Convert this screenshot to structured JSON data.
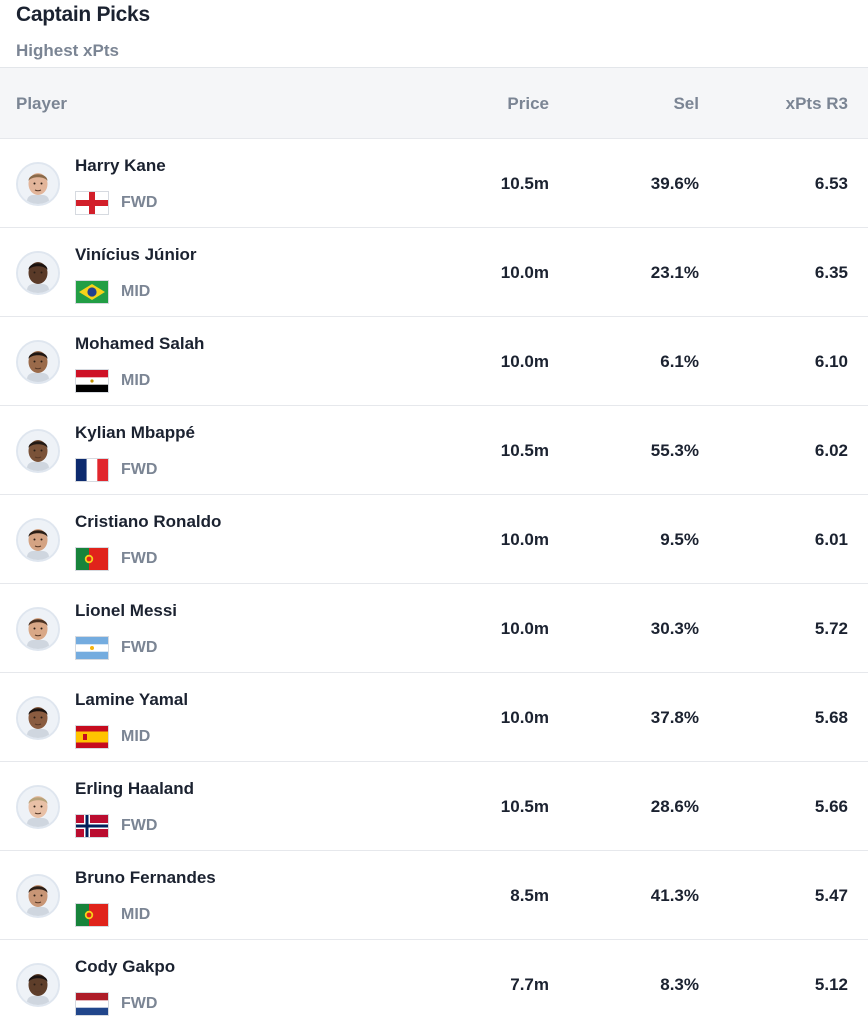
{
  "header": {
    "title": "Captain Picks",
    "subtitle": "Highest xPts"
  },
  "columns": {
    "player": "Player",
    "price": "Price",
    "sel": "Sel",
    "xpts": "xPts R3"
  },
  "rows": [
    {
      "name": "Harry Kane",
      "flag_icon": "england-flag-icon",
      "position": "FWD",
      "price": "10.5m",
      "sel": "39.6%",
      "xpts": "6.53",
      "skin": "#e2b59a",
      "hair": "#8a6a4a"
    },
    {
      "name": "Vinícius Júnior",
      "flag_icon": "brazil-flag-icon",
      "position": "MID",
      "price": "10.0m",
      "sel": "23.1%",
      "xpts": "6.35",
      "skin": "#5a3a28",
      "hair": "#1a1210"
    },
    {
      "name": "Mohamed Salah",
      "flag_icon": "egypt-flag-icon",
      "position": "MID",
      "price": "10.0m",
      "sel": "6.1%",
      "xpts": "6.10",
      "skin": "#9a6a4a",
      "hair": "#1e1612"
    },
    {
      "name": "Kylian Mbappé",
      "flag_icon": "france-flag-icon",
      "position": "FWD",
      "price": "10.5m",
      "sel": "55.3%",
      "xpts": "6.02",
      "skin": "#7a5238",
      "hair": "#231a14"
    },
    {
      "name": "Cristiano Ronaldo",
      "flag_icon": "portugal-flag-icon",
      "position": "FWD",
      "price": "10.0m",
      "sel": "9.5%",
      "xpts": "6.01",
      "skin": "#d4a383",
      "hair": "#2a1e16"
    },
    {
      "name": "Lionel Messi",
      "flag_icon": "argentina-flag-icon",
      "position": "FWD",
      "price": "10.0m",
      "sel": "30.3%",
      "xpts": "5.72",
      "skin": "#d9a887",
      "hair": "#4a3222"
    },
    {
      "name": "Lamine Yamal",
      "flag_icon": "spain-flag-icon",
      "position": "MID",
      "price": "10.0m",
      "sel": "37.8%",
      "xpts": "5.68",
      "skin": "#8a5c40",
      "hair": "#1c1410"
    },
    {
      "name": "Erling Haaland",
      "flag_icon": "norway-flag-icon",
      "position": "FWD",
      "price": "10.5m",
      "sel": "28.6%",
      "xpts": "5.66",
      "skin": "#e8c0a6",
      "hair": "#b8a27a"
    },
    {
      "name": "Bruno Fernandes",
      "flag_icon": "portugal-flag-icon",
      "position": "MID",
      "price": "8.5m",
      "sel": "41.3%",
      "xpts": "5.47",
      "skin": "#c89676",
      "hair": "#2a1e16"
    },
    {
      "name": "Cody Gakpo",
      "flag_icon": "netherlands-flag-icon",
      "position": "FWD",
      "price": "7.7m",
      "sel": "8.3%",
      "xpts": "5.12",
      "skin": "#5e3e2a",
      "hair": "#1a1210"
    }
  ]
}
